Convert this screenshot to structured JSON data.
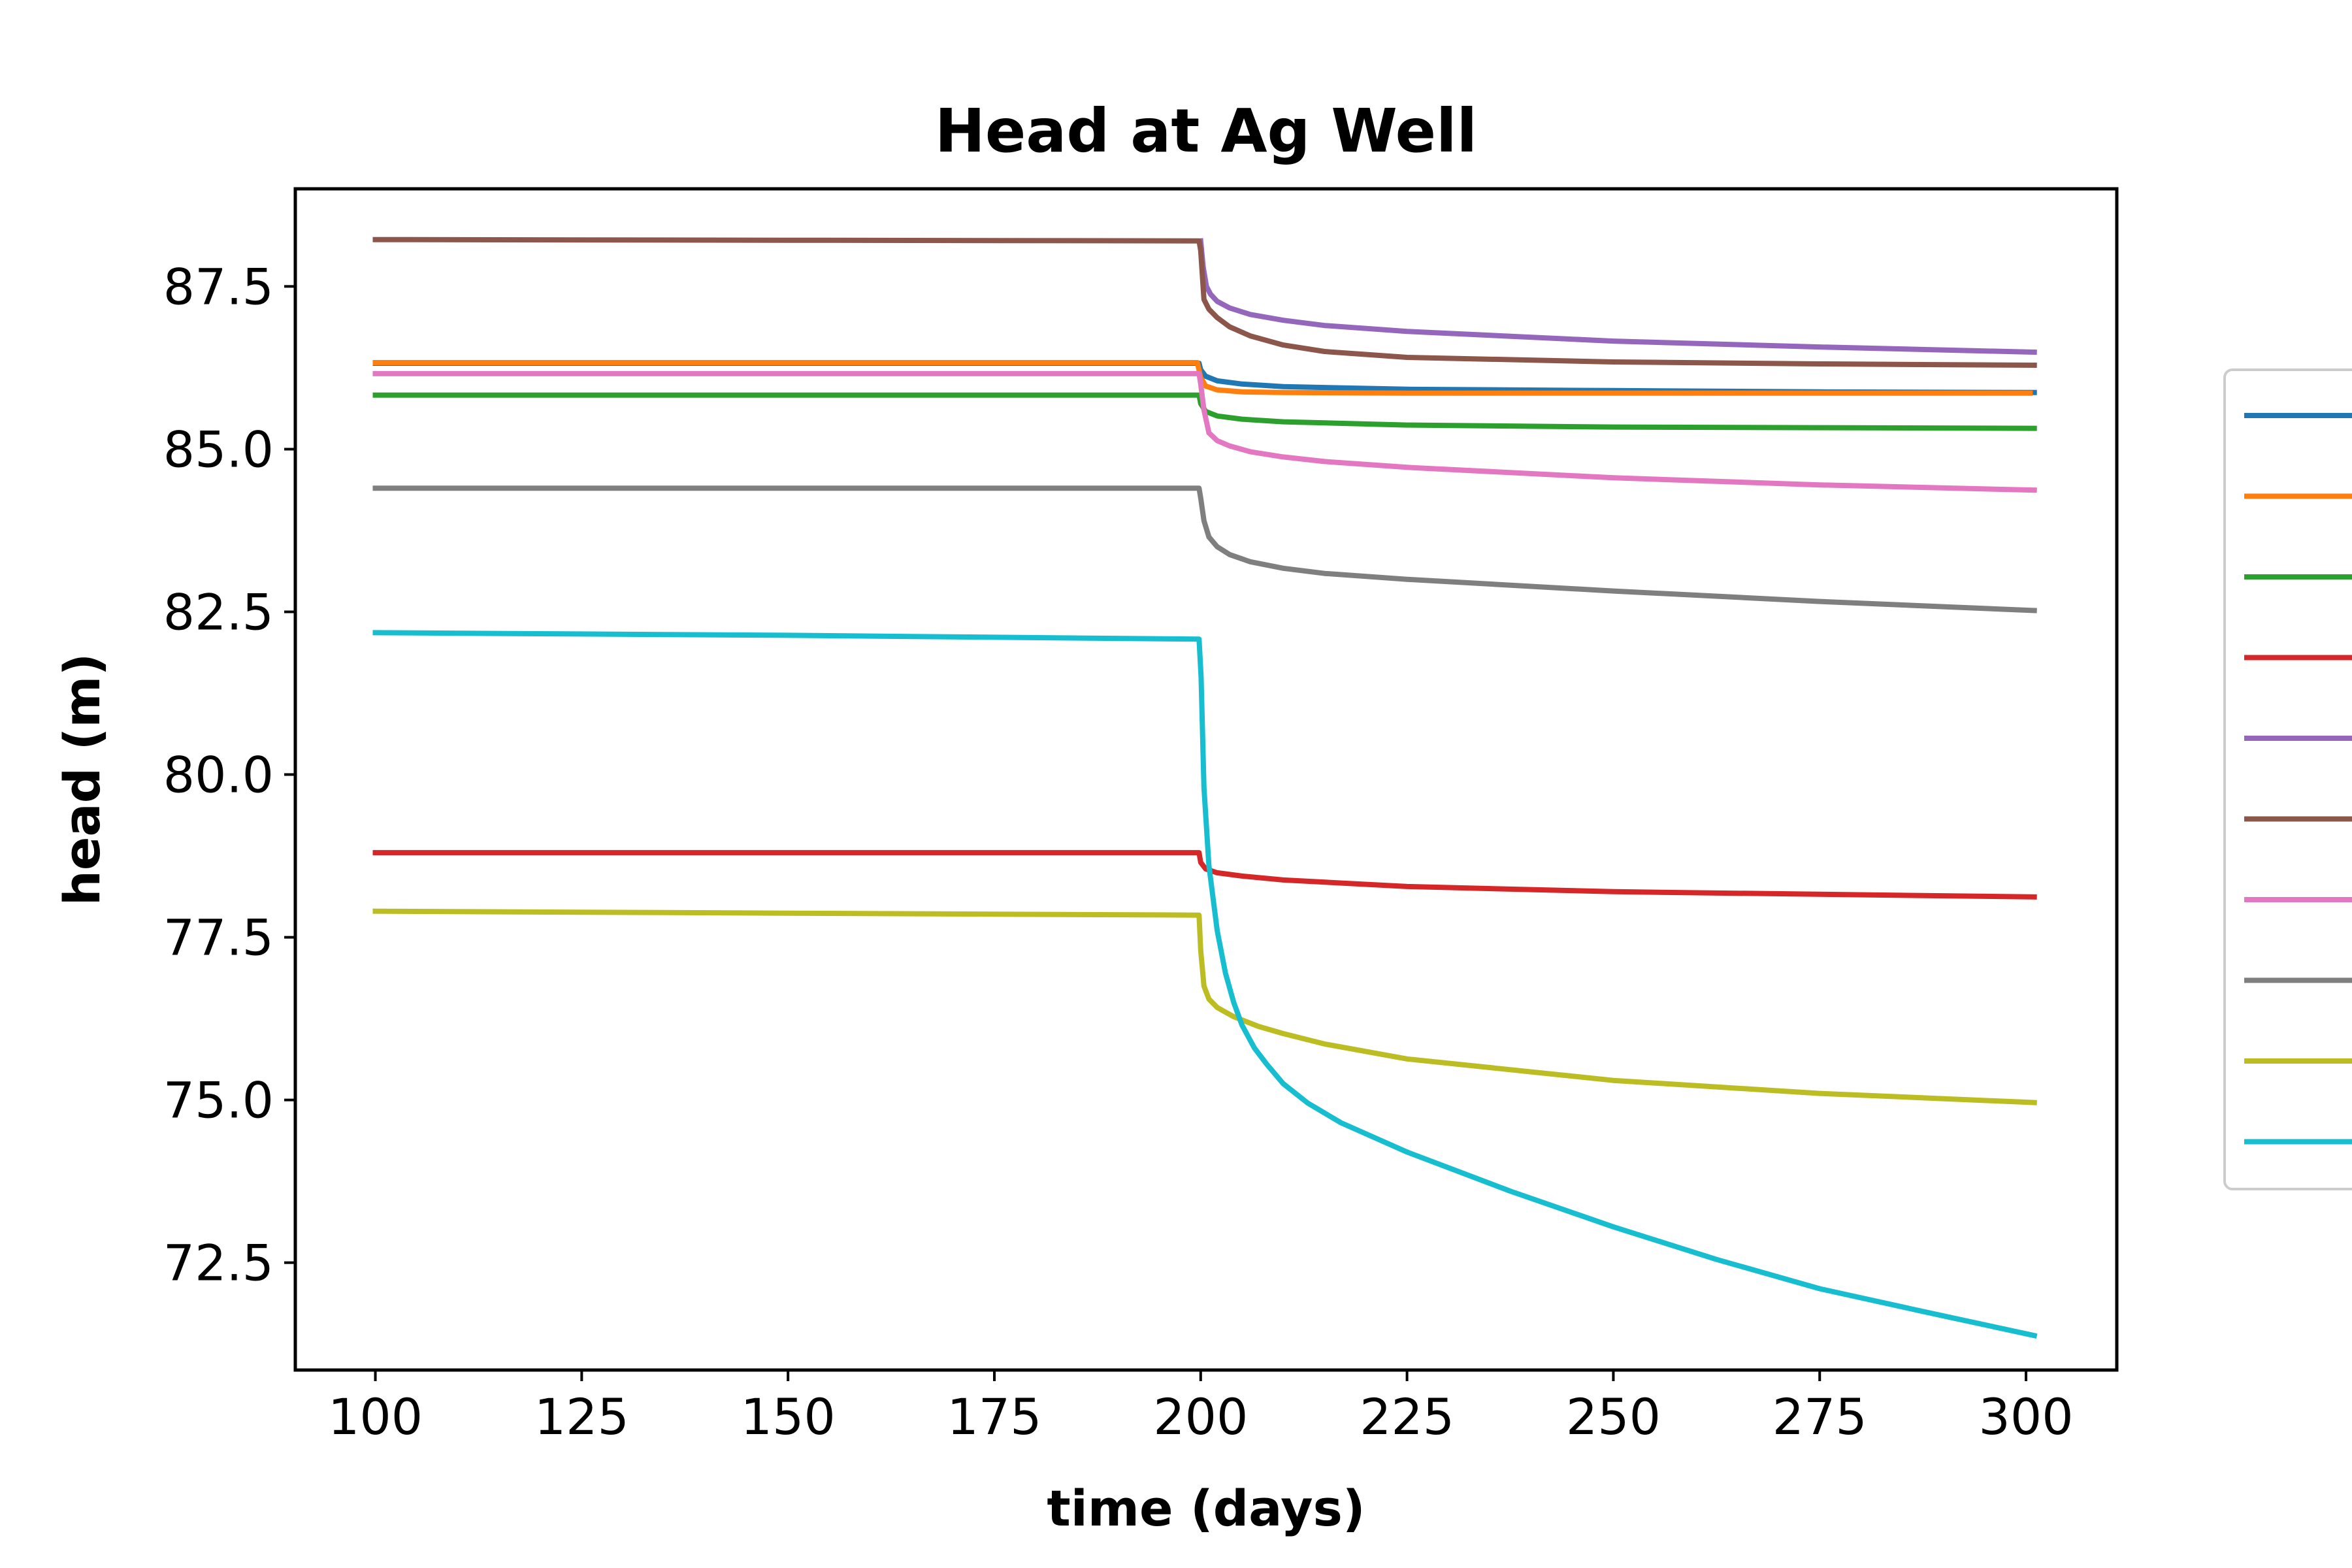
{
  "chart_data": {
    "type": "line",
    "title": "Head at Ag Well",
    "xlabel": "time (days)",
    "ylabel": "head (m)",
    "xlim": [
      90.3,
      311.0
    ],
    "ylim": [
      70.85,
      89.0
    ],
    "xticks": [
      100,
      125,
      150,
      175,
      200,
      225,
      250,
      275,
      300
    ],
    "xtick_labels": [
      "100",
      "125",
      "150",
      "175",
      "200",
      "225",
      "250",
      "275",
      "300"
    ],
    "yticks": [
      72.5,
      75.0,
      77.5,
      80.0,
      82.5,
      85.0,
      87.5
    ],
    "ytick_labels": [
      "72.5",
      "75.0",
      "77.5",
      "80.0",
      "82.5",
      "85.0",
      "87.5"
    ],
    "grid": false,
    "legend": {
      "placement": "right, outside plot area",
      "entries_visible": 10
    },
    "series": [
      {
        "color": "#1f77b4",
        "x": [
          100,
          150,
          199.8,
          200,
          200.6,
          202,
          205,
          210,
          225,
          250,
          275,
          301
        ],
        "y": [
          86.32,
          86.32,
          86.32,
          86.22,
          86.12,
          86.05,
          86.0,
          85.96,
          85.92,
          85.9,
          85.88,
          85.87
        ]
      },
      {
        "color": "#ff7f0e",
        "x": [
          100,
          150,
          199.6,
          200,
          200.6,
          202,
          205,
          210,
          225,
          250,
          275,
          300.5
        ],
        "y": [
          86.33,
          86.33,
          86.33,
          86.1,
          85.97,
          85.91,
          85.88,
          85.87,
          85.86,
          85.86,
          85.86,
          85.86
        ]
      },
      {
        "color": "#2ca02c",
        "x": [
          100,
          150,
          199.8,
          200,
          200.6,
          202,
          205,
          210,
          225,
          250,
          275,
          301
        ],
        "y": [
          85.83,
          85.83,
          85.83,
          85.7,
          85.58,
          85.51,
          85.46,
          85.42,
          85.37,
          85.34,
          85.33,
          85.32
        ]
      },
      {
        "color": "#d62728",
        "x": [
          100,
          150,
          199.8,
          200,
          200.6,
          202,
          205,
          210,
          225,
          250,
          275,
          301
        ],
        "y": [
          78.8,
          78.8,
          78.8,
          78.65,
          78.55,
          78.49,
          78.44,
          78.38,
          78.28,
          78.2,
          78.16,
          78.12
        ]
      },
      {
        "color": "#9467bd",
        "x": [
          200,
          200.3,
          200.7,
          201.2,
          202,
          203.5,
          206,
          210,
          215,
          225,
          250,
          275,
          301
        ],
        "y": [
          88.2,
          87.8,
          87.5,
          87.38,
          87.27,
          87.17,
          87.07,
          86.98,
          86.9,
          86.81,
          86.66,
          86.57,
          86.49
        ]
      },
      {
        "color": "#8c564b",
        "x": [
          100,
          150,
          199.8,
          200,
          200.4,
          201,
          202,
          203.5,
          206,
          210,
          215,
          225,
          250,
          275,
          301
        ],
        "y": [
          88.22,
          88.21,
          88.2,
          88.05,
          87.3,
          87.15,
          87.02,
          86.88,
          86.74,
          86.6,
          86.5,
          86.41,
          86.34,
          86.31,
          86.29
        ]
      },
      {
        "color": "#e377c2",
        "x": [
          100,
          150,
          199.8,
          200,
          200.4,
          201,
          202,
          203.5,
          206,
          210,
          215,
          225,
          250,
          275,
          301
        ],
        "y": [
          86.16,
          86.16,
          86.16,
          86.0,
          85.6,
          85.25,
          85.13,
          85.05,
          84.96,
          84.88,
          84.81,
          84.72,
          84.56,
          84.45,
          84.37
        ]
      },
      {
        "color": "#7f7f7f",
        "x": [
          100,
          150,
          199.8,
          200,
          200.4,
          201,
          202,
          203.5,
          206,
          210,
          215,
          225,
          250,
          275,
          301
        ],
        "y": [
          84.4,
          84.4,
          84.4,
          84.25,
          83.9,
          83.65,
          83.5,
          83.38,
          83.27,
          83.17,
          83.09,
          83.0,
          82.82,
          82.66,
          82.52
        ]
      },
      {
        "color": "#bcbd22",
        "x": [
          100,
          150,
          199.8,
          200,
          200.4,
          201,
          202,
          204,
          207,
          210,
          215,
          225,
          250,
          275,
          301
        ],
        "y": [
          77.9,
          77.87,
          77.84,
          77.3,
          76.75,
          76.55,
          76.42,
          76.28,
          76.13,
          76.02,
          75.86,
          75.63,
          75.3,
          75.1,
          74.96
        ]
      },
      {
        "color": "#17becf",
        "x": [
          100,
          150,
          199.8,
          200.05,
          200.4,
          201,
          202,
          203,
          204,
          205,
          206.5,
          208,
          210,
          213,
          217,
          225,
          237.5,
          250,
          262.5,
          275,
          287.5,
          301
        ],
        "y": [
          82.18,
          82.14,
          82.08,
          81.5,
          79.8,
          78.6,
          77.6,
          76.95,
          76.5,
          76.15,
          75.8,
          75.55,
          75.25,
          74.95,
          74.65,
          74.2,
          73.6,
          73.05,
          72.55,
          72.1,
          71.75,
          71.38
        ]
      }
    ]
  }
}
